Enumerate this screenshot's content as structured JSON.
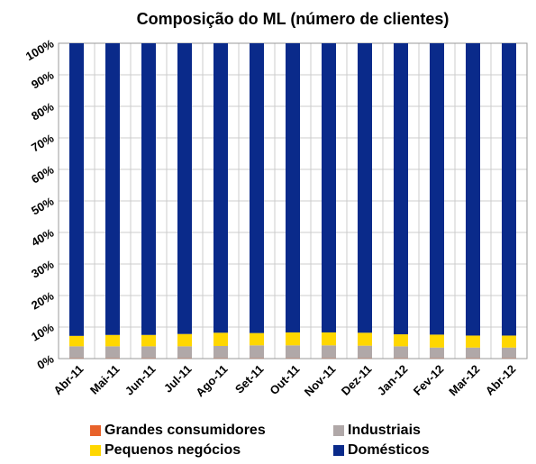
{
  "chart_data": {
    "type": "bar",
    "stacked": true,
    "title": "Composição do ML (número de clientes)",
    "categories": [
      "Abr-11",
      "Mai-11",
      "Jun-11",
      "Jul-11",
      "Ago-11",
      "Set-11",
      "Out-11",
      "Nov-11",
      "Dez-11",
      "Jan-12",
      "Fev-12",
      "Mar-12",
      "Abr-12"
    ],
    "series": [
      {
        "name": "Grandes consumidores",
        "color": "#e8622a",
        "values": [
          0.1,
          0.1,
          0.1,
          0.1,
          0.1,
          0.1,
          0.1,
          0.1,
          0.1,
          0.1,
          0.1,
          0.1,
          0.1
        ]
      },
      {
        "name": "Industriais",
        "color": "#b0a8a8",
        "values": [
          3.8,
          3.8,
          3.8,
          3.8,
          3.9,
          4.1,
          4.1,
          4.1,
          4.0,
          3.8,
          3.4,
          3.4,
          3.4
        ]
      },
      {
        "name": "Pequenos negócios",
        "color": "#ffd700",
        "values": [
          3.3,
          3.6,
          3.6,
          3.9,
          4.2,
          3.9,
          4.1,
          4.1,
          4.1,
          3.8,
          4.1,
          3.8,
          3.8
        ]
      },
      {
        "name": "Domésticos",
        "color": "#0a2a8a",
        "values": [
          92.8,
          92.5,
          92.5,
          92.2,
          91.8,
          91.9,
          91.7,
          91.7,
          91.8,
          92.3,
          92.4,
          92.7,
          92.7
        ]
      }
    ],
    "ylim": [
      0,
      100
    ],
    "yticks": [
      {
        "value": 0,
        "label": "0%"
      },
      {
        "value": 10,
        "label": "10%"
      },
      {
        "value": 20,
        "label": "20%"
      },
      {
        "value": 30,
        "label": "30%"
      },
      {
        "value": 40,
        "label": "40%"
      },
      {
        "value": 50,
        "label": "50%"
      },
      {
        "value": 60,
        "label": "60%"
      },
      {
        "value": 70,
        "label": "70%"
      },
      {
        "value": 80,
        "label": "80%"
      },
      {
        "value": 90,
        "label": "90%"
      },
      {
        "value": 100,
        "label": "100%"
      }
    ],
    "grid": true
  }
}
